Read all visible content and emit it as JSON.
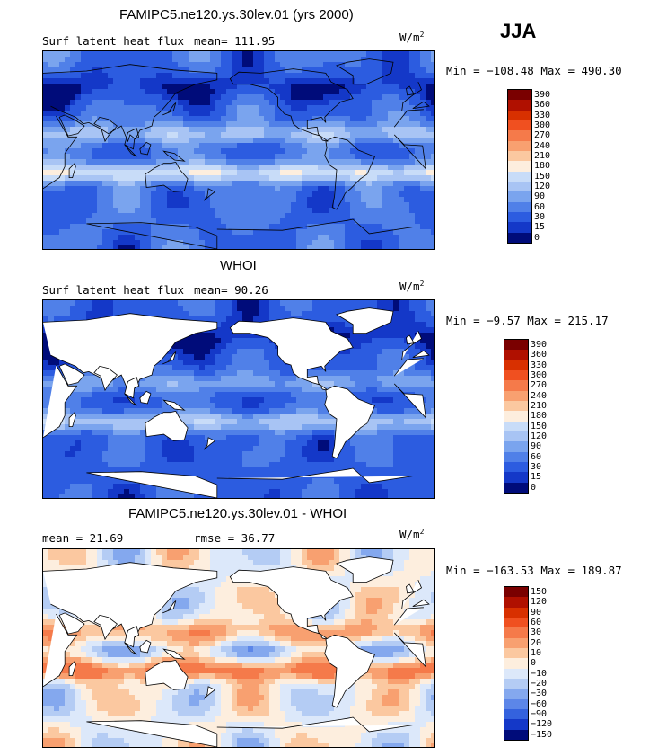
{
  "season": "JJA",
  "panels": [
    {
      "title": "FAMIPC5.ne120.ys.30lev.01 (yrs 2000)",
      "left_label": "Surf latent heat flux",
      "stat_label": "mean= 111.95",
      "units_base": "W/m",
      "units_exp": "2",
      "minmax": "Min = −108.48 Max = 490.30",
      "palette": "model",
      "colorbar_labels": [
        "390",
        "360",
        "330",
        "300",
        "270",
        "240",
        "210",
        "180",
        "150",
        "120",
        "90",
        "60",
        "30",
        "15",
        "0"
      ],
      "colorbar_colors": [
        "#7a0000",
        "#b01000",
        "#d83000",
        "#f05020",
        "#f57a4a",
        "#f8a070",
        "#fbc8a0",
        "#fdeede",
        "#c8dcf8",
        "#a8c4f4",
        "#7aa4ee",
        "#5080e8",
        "#2c5ce0",
        "#1438c8",
        "#000c7a"
      ]
    },
    {
      "title": "WHOI",
      "left_label": "Surf latent heat flux",
      "stat_label": "mean=  90.26",
      "units_base": "W/m",
      "units_exp": "2",
      "minmax": "Min =  −9.57 Max = 215.17",
      "palette": "obs",
      "colorbar_labels": [
        "390",
        "360",
        "330",
        "300",
        "270",
        "240",
        "210",
        "180",
        "150",
        "120",
        "90",
        "60",
        "30",
        "15",
        "0"
      ],
      "colorbar_colors": [
        "#7a0000",
        "#b01000",
        "#d83000",
        "#f05020",
        "#f57a4a",
        "#f8a070",
        "#fbc8a0",
        "#fdeede",
        "#c8dcf8",
        "#a8c4f4",
        "#7aa4ee",
        "#5080e8",
        "#2c5ce0",
        "#1438c8",
        "#000c7a"
      ]
    },
    {
      "title": "FAMIPC5.ne120.ys.30lev.01 - WHOI",
      "left_label": "mean =  21.69",
      "stat_label": "rmse =  36.77",
      "units_base": "W/m",
      "units_exp": "2",
      "minmax": "Min = −163.53 Max = 189.87",
      "palette": "diff",
      "colorbar_labels": [
        "150",
        "120",
        "90",
        "60",
        "30",
        "20",
        "10",
        "0",
        "−10",
        "−20",
        "−30",
        "−60",
        "−90",
        "−120",
        "−150"
      ],
      "colorbar_colors": [
        "#7a0000",
        "#b01000",
        "#d83000",
        "#f05020",
        "#f57a4a",
        "#f8a070",
        "#fbc8a0",
        "#fdeede",
        "#dce8fa",
        "#b4ccf4",
        "#84a8ee",
        "#5c86e8",
        "#3462de",
        "#1438c8",
        "#000c7a"
      ]
    }
  ],
  "chart_data": [
    {
      "type": "heatmap",
      "title": "FAMIPC5.ne120.ys.30lev.01 (yrs 2000)",
      "variable": "Surf latent heat flux",
      "units": "W/m2",
      "mean": 111.95,
      "min": -108.48,
      "max": 490.3,
      "contour_levels": [
        0,
        15,
        30,
        60,
        90,
        120,
        150,
        180,
        210,
        240,
        270,
        300,
        330,
        360,
        390
      ]
    },
    {
      "type": "heatmap",
      "title": "WHOI",
      "variable": "Surf latent heat flux",
      "units": "W/m2",
      "mean": 90.26,
      "min": -9.57,
      "max": 215.17,
      "contour_levels": [
        0,
        15,
        30,
        60,
        90,
        120,
        150,
        180,
        210,
        240,
        270,
        300,
        330,
        360,
        390
      ]
    },
    {
      "type": "heatmap",
      "title": "FAMIPC5.ne120.ys.30lev.01 - WHOI",
      "units": "W/m2",
      "mean": 21.69,
      "rmse": 36.77,
      "min": -163.53,
      "max": 189.87,
      "contour_levels": [
        -150,
        -120,
        -90,
        -60,
        -30,
        -20,
        -10,
        0,
        10,
        20,
        30,
        60,
        90,
        120,
        150
      ]
    }
  ]
}
